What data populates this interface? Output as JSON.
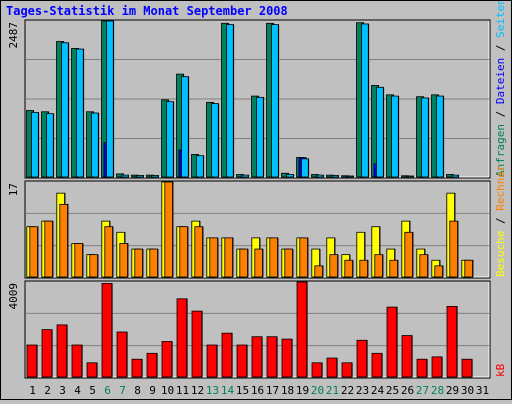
{
  "chart_data": {
    "type": "bar",
    "title": "Tages-Statistik im Monat September 2008",
    "categories": [
      "1",
      "2",
      "3",
      "4",
      "5",
      "6",
      "7",
      "8",
      "9",
      "10",
      "11",
      "12",
      "13",
      "14",
      "15",
      "16",
      "17",
      "18",
      "19",
      "20",
      "21",
      "22",
      "23",
      "24",
      "25",
      "26",
      "27",
      "28",
      "29",
      "30",
      "31"
    ],
    "weekend_days": [
      "6",
      "7",
      "13",
      "14",
      "20",
      "21",
      "27",
      "28"
    ],
    "panels": [
      {
        "name": "Anfragen / Dateien / Seiten",
        "ymax_label": "2487",
        "ymax": 2487,
        "gridlines": 4,
        "series": [
          {
            "name": "Anfragen",
            "color": "#00805c",
            "values": [
              1060,
              1040,
              2160,
              2050,
              1040,
              2487,
              50,
              30,
              30,
              1230,
              1640,
              360,
              1190,
              2450,
              40,
              1290,
              2450,
              60,
              310,
              40,
              30,
              20,
              2460,
              1460,
              1310,
              20,
              1280,
              1310,
              40,
              null,
              null
            ]
          },
          {
            "name": "Dateien",
            "color": "#0000ff",
            "values": [
              0,
              0,
              0,
              0,
              0,
              550,
              0,
              0,
              0,
              0,
              430,
              0,
              0,
              0,
              0,
              0,
              0,
              0,
              310,
              0,
              0,
              0,
              0,
              210,
              0,
              0,
              0,
              0,
              0,
              null,
              null
            ]
          },
          {
            "name": "Seiten",
            "color": "#00c0ff",
            "values": [
              1030,
              1010,
              2140,
              2040,
              1020,
              2487,
              30,
              25,
              25,
              1200,
              1600,
              340,
              1170,
              2430,
              30,
              1270,
              2430,
              40,
              290,
              30,
              25,
              15,
              2440,
              1430,
              1290,
              15,
              1260,
              1290,
              30,
              null,
              null
            ]
          }
        ]
      },
      {
        "name": "Besuche / Rechner",
        "ymax_label": "17",
        "ymax": 17,
        "gridlines": 3,
        "series": [
          {
            "name": "Besuche",
            "color": "#ffff00",
            "values": [
              9,
              10,
              15,
              6,
              4,
              10,
              8,
              5,
              5,
              17,
              9,
              10,
              7,
              7,
              5,
              7,
              7,
              5,
              7,
              5,
              7,
              4,
              8,
              9,
              5,
              10,
              5,
              3,
              15,
              3,
              null
            ]
          },
          {
            "name": "Rechner",
            "color": "#ff8000",
            "values": [
              9,
              10,
              13,
              6,
              4,
              9,
              6,
              5,
              5,
              17,
              9,
              9,
              7,
              7,
              5,
              5,
              7,
              5,
              7,
              2,
              4,
              3,
              3,
              4,
              3,
              8,
              4,
              2,
              10,
              3,
              null
            ]
          }
        ]
      },
      {
        "name": "kB",
        "ymax_label": "4009",
        "ymax": 4009,
        "gridlines": 3,
        "series": [
          {
            "name": "kB",
            "color": "#ff0000",
            "values": [
              1350,
              2000,
              2200,
              1350,
              600,
              3950,
              1900,
              750,
              1000,
              1500,
              3300,
              2780,
              1350,
              1850,
              1350,
              1700,
              1700,
              1600,
              4009,
              600,
              800,
              600,
              1550,
              1000,
              2950,
              1750,
              750,
              850,
              2980,
              750,
              null
            ]
          }
        ]
      }
    ],
    "legend_right": [
      [
        {
          "text": "Anfragen",
          "color": "#00805c"
        },
        {
          "text": " / ",
          "color": "#000000"
        },
        {
          "text": "Dateien",
          "color": "#0000ff"
        },
        {
          "text": " / ",
          "color": "#000000"
        },
        {
          "text": "Seiten",
          "color": "#00c0ff"
        }
      ],
      [
        {
          "text": "Besuche",
          "color": "#ffff00"
        },
        {
          "text": " / ",
          "color": "#000000"
        },
        {
          "text": "Rechner",
          "color": "#ff8000"
        }
      ],
      [
        {
          "text": "kB",
          "color": "#ff0000"
        }
      ]
    ],
    "colors": {
      "title": "#0000ff",
      "background": "#c0c0c0",
      "plot_bg": "#c0c0c0",
      "grid": "#808080",
      "weekday_label": "#000000",
      "weekend_label": "#00805c"
    }
  }
}
